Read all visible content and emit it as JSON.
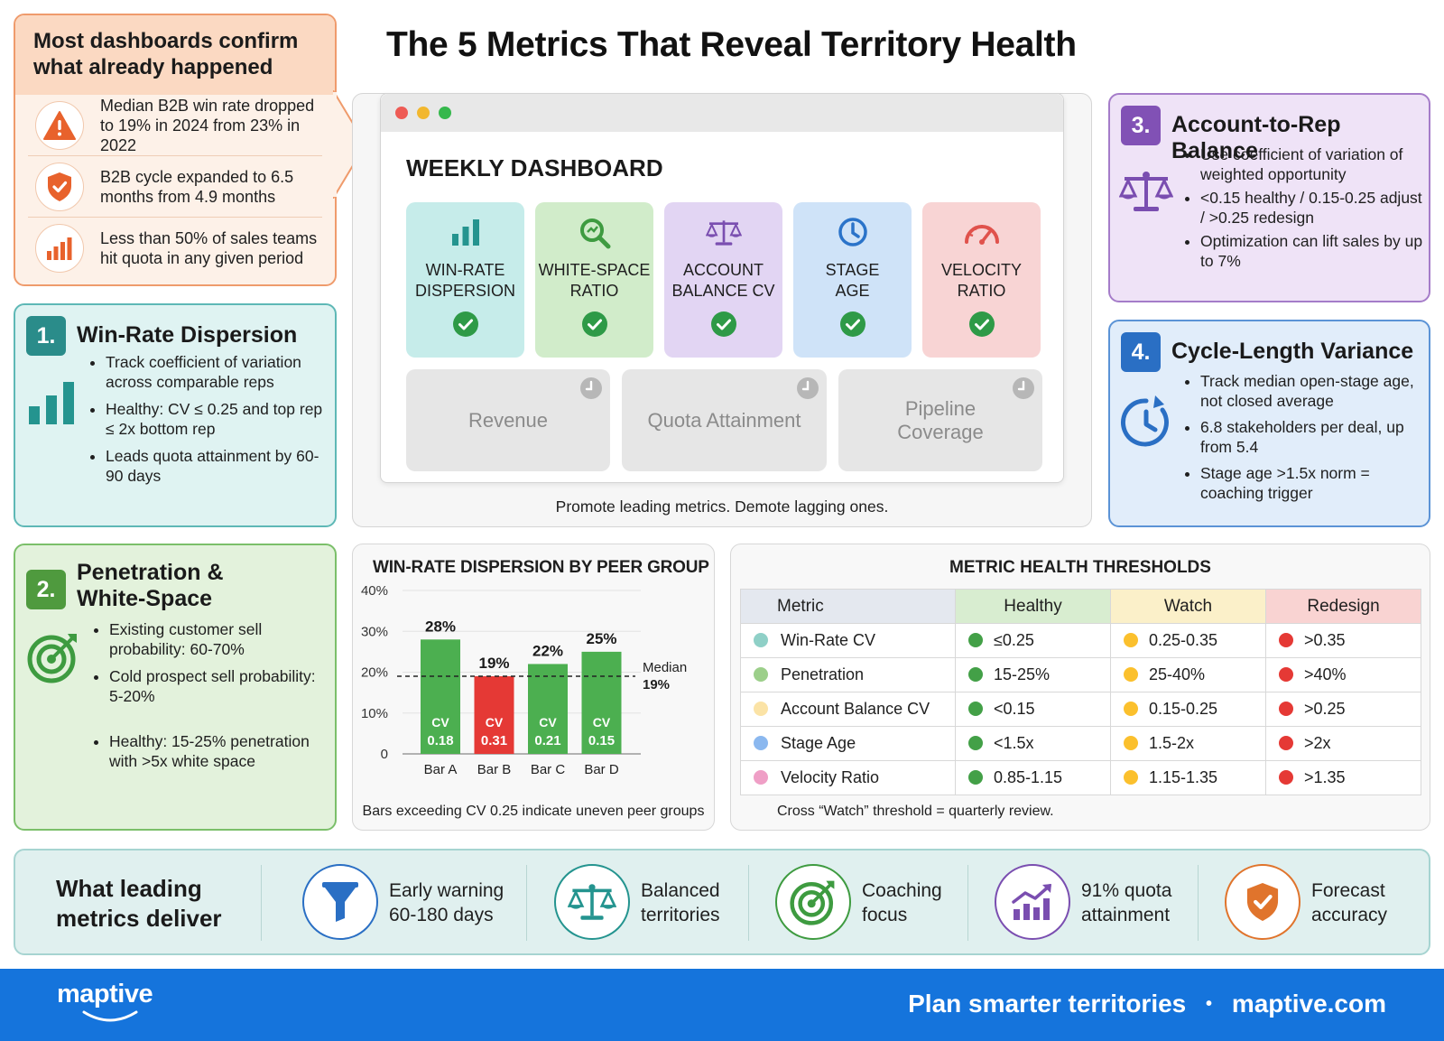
{
  "title": "The 5 Metrics That Reveal Territory Health",
  "warning": {
    "heading": "Most dashboards confirm what already happened",
    "items": [
      {
        "text": "Median B2B win rate dropped to 19% in 2024 from 23% in 2022",
        "icon": "warning-triangle-icon"
      },
      {
        "text": "B2B cycle expanded to 6.5 months from 4.9 months",
        "icon": "shield-check-icon"
      },
      {
        "text": "Less than 50% of sales teams hit quota in any given period",
        "icon": "bar-chart-icon"
      }
    ]
  },
  "cards": [
    {
      "number": "1.",
      "title": "Win-Rate Dispersion",
      "color": "#2a8c8a",
      "bullets": [
        "Track coefficient of variation across comparable reps",
        "Healthy: CV ≤ 0.25 and top rep ≤ 2x bottom rep",
        "Leads quota attainment by 60-90 days"
      ]
    },
    {
      "number": "2.",
      "title": "Penetration & White-Space",
      "color": "#4f9a3e",
      "bullets": [
        "Existing customer sell probability: 60-70%",
        "Cold prospect sell probability: 5-20%",
        "Healthy: 15-25% penetration with >5x white space"
      ]
    },
    {
      "number": "3.",
      "title": "Account-to-Rep Balance",
      "color": "#8151b5",
      "bullets": [
        "Use coefficient of variation of weighted opportunity",
        "<0.15 healthy / 0.15-0.25 adjust / >0.25 redesign",
        "Optimization can lift sales by up to 7%"
      ]
    },
    {
      "number": "4.",
      "title": "Cycle-Length Variance",
      "color": "#2a6fc4",
      "bullets": [
        "Track median open-stage age, not closed average",
        "6.8 stakeholders per deal, up from 5.4",
        "Stage age >1.5x norm = coaching trigger"
      ]
    }
  ],
  "dashboard": {
    "label": "WEEKLY DASHBOARD",
    "leading": [
      {
        "line1": "WIN-RATE",
        "line2": "DISPERSION",
        "bg": "#c6ecea",
        "icon": "bar-chart-icon",
        "accent": "#24948f"
      },
      {
        "line1": "WHITE-SPACE",
        "line2": "RATIO",
        "bg": "#d1ecca",
        "icon": "magnifier-icon",
        "accent": "#3e9b40"
      },
      {
        "line1": "ACCOUNT",
        "line2": "BALANCE CV",
        "bg": "#e2d5f3",
        "icon": "scale-icon",
        "accent": "#7a4eb0"
      },
      {
        "line1": "STAGE",
        "line2": "AGE",
        "bg": "#cfe3f8",
        "icon": "clock-icon",
        "accent": "#2a73c9"
      },
      {
        "line1": "VELOCITY",
        "line2": "RATIO",
        "bg": "#f8d4d4",
        "icon": "gauge-icon",
        "accent": "#e0524c"
      }
    ],
    "lagging": [
      {
        "line1": "Revenue",
        "line2": ""
      },
      {
        "line1": "Quota Attainment",
        "line2": ""
      },
      {
        "line1": "Pipeline",
        "line2": "Coverage"
      }
    ],
    "caption": "Promote leading metrics. Demote lagging ones."
  },
  "chart_data": {
    "type": "bar",
    "title": "WIN-RATE DISPERSION BY PEER GROUP",
    "categories": [
      "Bar A",
      "Bar B",
      "Bar C",
      "Bar D"
    ],
    "values": [
      28,
      19,
      22,
      25
    ],
    "value_labels": [
      "28%",
      "19%",
      "22%",
      "25%"
    ],
    "cv_labels": [
      "0.18",
      "0.31",
      "0.21",
      "0.15"
    ],
    "cv_prefix": "CV",
    "bar_colors": [
      "#4caf50",
      "#e53935",
      "#4caf50",
      "#4caf50"
    ],
    "yticks": [
      "0",
      "10%",
      "20%",
      "30%",
      "40%"
    ],
    "ylim": [
      0,
      40
    ],
    "median": {
      "value": 19,
      "label_line1": "Median",
      "label_line2": "19%"
    },
    "caption": "Bars exceeding CV 0.25 indicate uneven peer groups"
  },
  "thresholds": {
    "title": "METRIC HEALTH THRESHOLDS",
    "headers": [
      "Metric",
      "Healthy",
      "Watch",
      "Redesign"
    ],
    "status_colors": {
      "healthy": "#43a047",
      "watch": "#fbc02d",
      "redesign": "#e53935"
    },
    "rows": [
      {
        "metric": "Win-Rate CV",
        "dot": "#8fd0c7",
        "healthy": "≤0.25",
        "watch": "0.25-0.35",
        "redesign": ">0.35"
      },
      {
        "metric": "Penetration",
        "dot": "#9ccf8a",
        "healthy": "15-25%",
        "watch": "25-40%",
        "redesign": ">40%"
      },
      {
        "metric": "Account Balance CV",
        "dot": "#fbe3a6",
        "healthy": "<0.15",
        "watch": "0.15-0.25",
        "redesign": ">0.25"
      },
      {
        "metric": "Stage Age",
        "dot": "#8bb8ef",
        "healthy": "<1.5x",
        "watch": "1.5-2x",
        "redesign": ">2x"
      },
      {
        "metric": "Velocity Ratio",
        "dot": "#ef9fc6",
        "healthy": "0.85-1.15",
        "watch": "1.15-1.35",
        "redesign": ">1.35"
      }
    ],
    "caption": "Cross “Watch” threshold = quarterly review."
  },
  "benefits": {
    "title_line1": "What leading",
    "title_line2": "metrics deliver",
    "items": [
      {
        "line1": "Early warning",
        "line2": "60-180 days",
        "icon": "funnel-icon",
        "color": "#2a6fc4"
      },
      {
        "line1": "Balanced",
        "line2": "territories",
        "icon": "scale-icon",
        "color": "#24948f"
      },
      {
        "line1": "Coaching",
        "line2": "focus",
        "icon": "target-icon",
        "color": "#3e9b40"
      },
      {
        "line1": "91% quota",
        "line2": "attainment",
        "icon": "growth-chart-icon",
        "color": "#7a4eb0"
      },
      {
        "line1": "Forecast",
        "line2": "accuracy",
        "icon": "shield-check-icon",
        "color": "#e0742c"
      }
    ]
  },
  "footer": {
    "logo": "maptive",
    "tagline": "Plan smarter territories",
    "separator": "•",
    "url": "maptive.com"
  }
}
